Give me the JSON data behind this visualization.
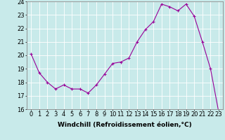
{
  "x": [
    0,
    1,
    2,
    3,
    4,
    5,
    6,
    7,
    8,
    9,
    10,
    11,
    12,
    13,
    14,
    15,
    16,
    17,
    18,
    19,
    20,
    21,
    22,
    23
  ],
  "y": [
    20.1,
    18.7,
    18.0,
    17.5,
    17.8,
    17.5,
    17.5,
    17.2,
    17.8,
    18.6,
    19.4,
    19.5,
    19.8,
    21.0,
    21.9,
    22.5,
    23.8,
    23.6,
    23.3,
    23.8,
    22.9,
    21.0,
    19.0,
    15.8
  ],
  "color": "#990099",
  "bg_color": "#c8eaea",
  "grid_color": "#ffffff",
  "xlabel": "Windchill (Refroidissement éolien,°C)",
  "ylim": [
    16,
    24
  ],
  "xlim_min": -0.5,
  "xlim_max": 23.5,
  "yticks": [
    16,
    17,
    18,
    19,
    20,
    21,
    22,
    23,
    24
  ],
  "xticks": [
    0,
    1,
    2,
    3,
    4,
    5,
    6,
    7,
    8,
    9,
    10,
    11,
    12,
    13,
    14,
    15,
    16,
    17,
    18,
    19,
    20,
    21,
    22,
    23
  ],
  "xlabel_fontsize": 6.5,
  "tick_fontsize": 6.0,
  "marker": "+",
  "marker_size": 3,
  "linewidth": 0.8
}
